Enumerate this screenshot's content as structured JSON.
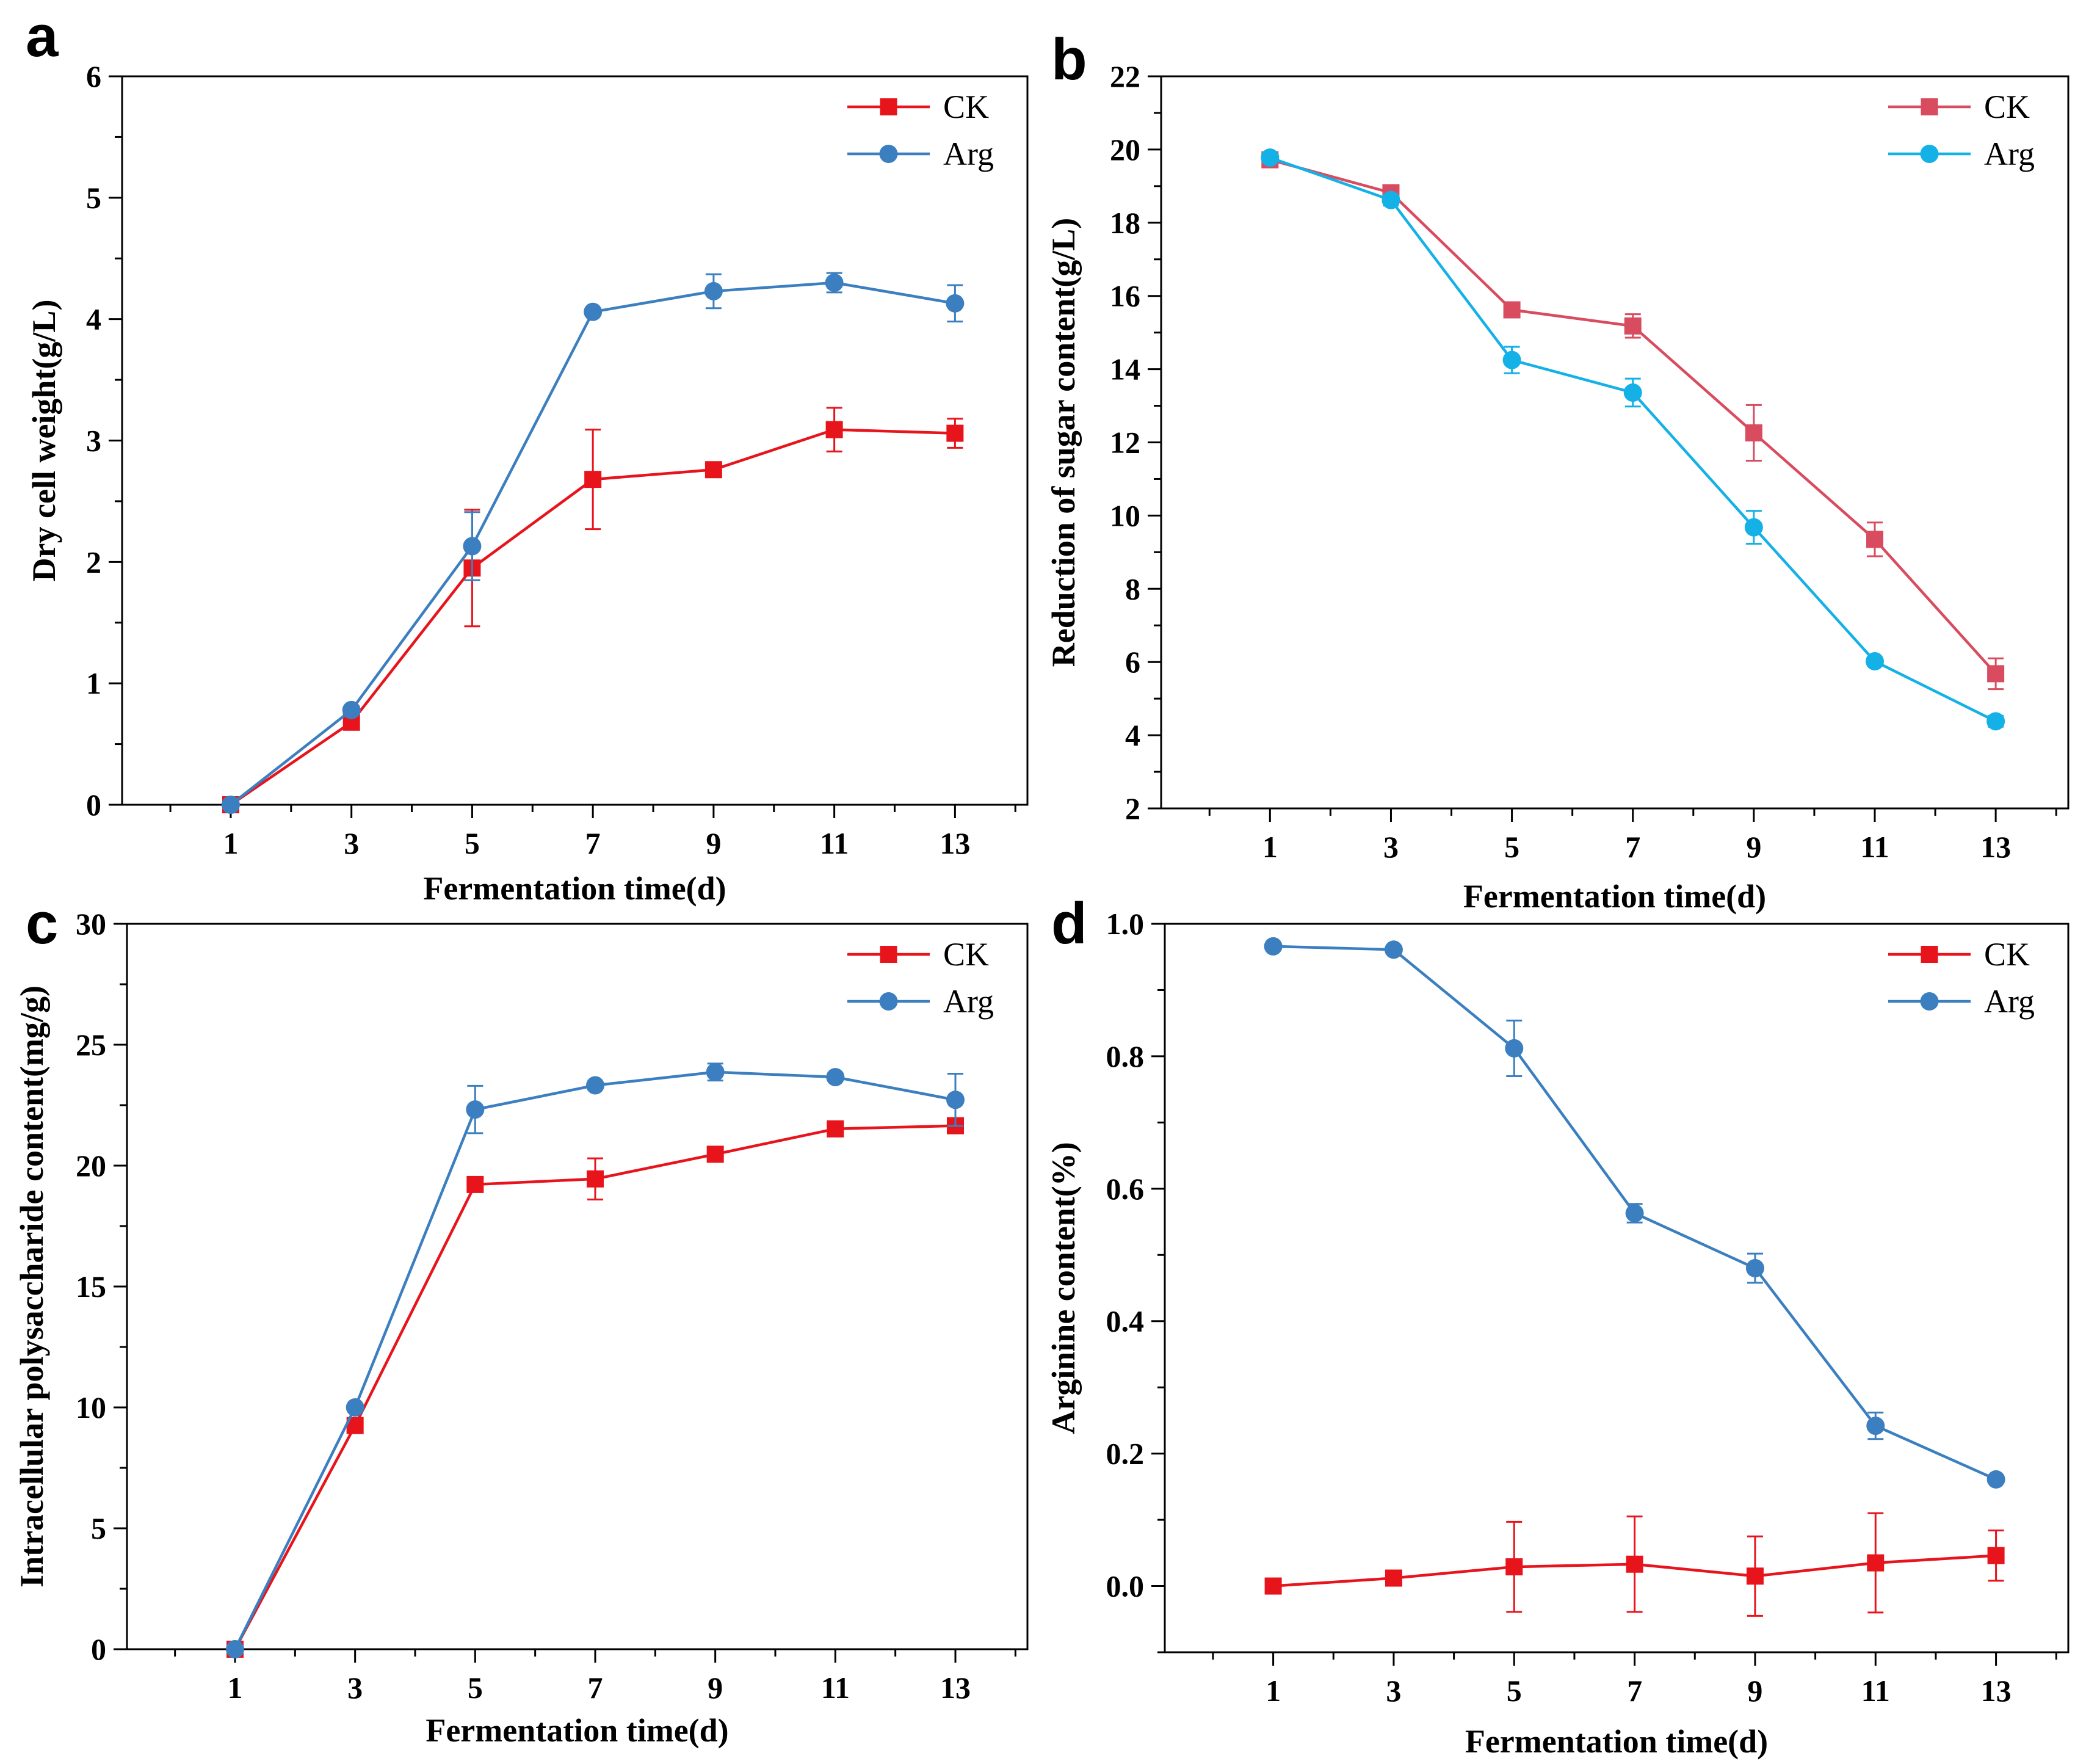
{
  "chart_data": [
    {
      "type": "line",
      "panel": "a",
      "xlabel": "Fermentation time(d)",
      "ylabel": "Dry cell weight(g/L)",
      "x": [
        1,
        3,
        5,
        7,
        9,
        11,
        13
      ],
      "xlim": [
        -0.8,
        14.2
      ],
      "ylim": [
        0,
        6
      ],
      "yticks": [
        0,
        1,
        2,
        3,
        4,
        5,
        6
      ],
      "ytick_labels": [
        "0",
        "1",
        "2",
        "3",
        "4",
        "5",
        "6"
      ],
      "legend_position": "top-right",
      "series": [
        {
          "name": "CK",
          "color": "#e8141c",
          "marker": "square",
          "values": [
            0.0,
            0.68,
            1.95,
            2.68,
            2.76,
            3.09,
            3.06
          ],
          "errors": [
            0.02,
            0.04,
            0.48,
            0.41,
            0.03,
            0.18,
            0.12
          ]
        },
        {
          "name": "Arg",
          "color": "#3b7fc0",
          "marker": "circle",
          "values": [
            0.0,
            0.78,
            2.13,
            4.06,
            4.23,
            4.3,
            4.13
          ],
          "errors": [
            0.02,
            0.03,
            0.28,
            0.02,
            0.14,
            0.08,
            0.15
          ]
        }
      ]
    },
    {
      "type": "line",
      "panel": "b",
      "xlabel": "Fermentation time(d)",
      "ylabel": "Reduction of sugar content(g/L)",
      "x": [
        1,
        3,
        5,
        7,
        9,
        11,
        13
      ],
      "xlim": [
        -0.8,
        14.2
      ],
      "ylim": [
        2,
        22
      ],
      "yticks": [
        2,
        4,
        6,
        8,
        10,
        12,
        14,
        16,
        18,
        20,
        22
      ],
      "ytick_labels": [
        "2",
        "4",
        "6",
        "8",
        "10",
        "12",
        "14",
        "16",
        "18",
        "20",
        "22"
      ],
      "legend_position": "top-right",
      "series": [
        {
          "name": "CK",
          "color": "#d94b5e",
          "marker": "square",
          "values": [
            19.72,
            18.82,
            15.62,
            15.18,
            12.26,
            9.35,
            5.68
          ],
          "errors": [
            0.12,
            0.15,
            0.15,
            0.32,
            0.76,
            0.46,
            0.42
          ]
        },
        {
          "name": "Arg",
          "color": "#14b1e7",
          "marker": "circle",
          "values": [
            19.78,
            18.62,
            14.25,
            13.36,
            9.68,
            6.02,
            4.38
          ],
          "errors": [
            0.12,
            0.15,
            0.36,
            0.38,
            0.45,
            0.1,
            0.15
          ]
        }
      ]
    },
    {
      "type": "line",
      "panel": "c",
      "xlabel": "Fermentation time(d)",
      "ylabel": "Intracellular polysaccharide content(mg/g)",
      "x": [
        1,
        3,
        5,
        7,
        9,
        11,
        13
      ],
      "xlim": [
        -0.8,
        14.2
      ],
      "ylim": [
        0,
        30
      ],
      "yticks": [
        0,
        5,
        10,
        15,
        20,
        25,
        30
      ],
      "ytick_labels": [
        "0",
        "5",
        "10",
        "15",
        "20",
        "25",
        "30"
      ],
      "legend_position": "top-right",
      "series": [
        {
          "name": "CK",
          "color": "#e8141c",
          "marker": "square",
          "values": [
            0.0,
            9.25,
            19.22,
            19.45,
            20.47,
            21.52,
            21.65
          ],
          "errors": [
            0.05,
            0.15,
            0.2,
            0.85,
            0.25,
            0.2,
            0.2
          ]
        },
        {
          "name": "Arg",
          "color": "#3b7fc0",
          "marker": "circle",
          "values": [
            0.0,
            10.0,
            22.32,
            23.32,
            23.87,
            23.66,
            22.72
          ],
          "errors": [
            0.05,
            0.15,
            0.98,
            0.15,
            0.35,
            0.15,
            1.08
          ]
        }
      ]
    },
    {
      "type": "line",
      "panel": "d",
      "xlabel": "Fermentation time(d)",
      "ylabel": "Arginine content(%)",
      "x": [
        1,
        3,
        5,
        7,
        9,
        11,
        13
      ],
      "xlim": [
        -0.8,
        14.2
      ],
      "ylim": [
        -0.1,
        1.0
      ],
      "yticks": [
        0.0,
        0.2,
        0.4,
        0.6,
        0.8,
        1.0
      ],
      "ytick_labels": [
        "0.0",
        "0.2",
        "0.4",
        "0.6",
        "0.8",
        "1.0"
      ],
      "legend_position": "top-right",
      "series": [
        {
          "name": "CK",
          "color": "#e8141c",
          "marker": "square",
          "values": [
            0.0,
            0.012,
            0.029,
            0.033,
            0.015,
            0.035,
            0.046
          ],
          "errors": [
            0.004,
            0.004,
            0.068,
            0.072,
            0.06,
            0.075,
            0.038
          ]
        },
        {
          "name": "Arg",
          "color": "#3b7fc0",
          "marker": "circle",
          "values": [
            0.966,
            0.961,
            0.812,
            0.563,
            0.48,
            0.242,
            0.161
          ],
          "errors": [
            0.004,
            0.004,
            0.042,
            0.014,
            0.022,
            0.02,
            0.004
          ]
        }
      ]
    }
  ]
}
